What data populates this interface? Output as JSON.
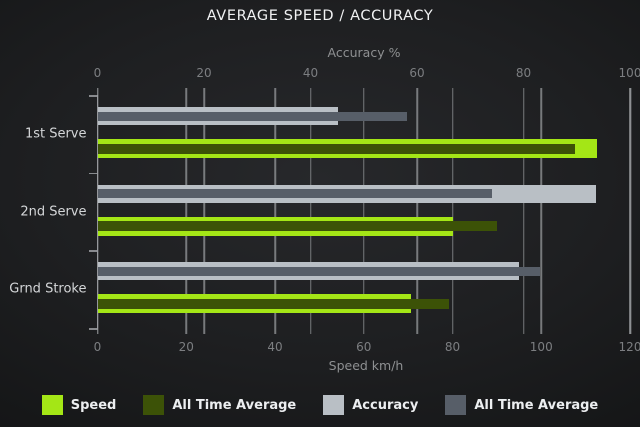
{
  "title": "AVERAGE SPEED / ACCURACY",
  "chart_data": {
    "type": "bar",
    "orientation": "horizontal",
    "grid": true,
    "categories": [
      "1st Serve",
      "2nd Serve",
      "Grnd Stroke"
    ],
    "series": [
      {
        "name": "Speed",
        "axis": "speed",
        "color": "#a4e616",
        "role": "current",
        "values": [
          112.5,
          80,
          70.5
        ]
      },
      {
        "name": "All Time Average",
        "axis": "speed",
        "color": "#3c5207",
        "role": "average",
        "values": [
          107.5,
          90,
          79
        ]
      },
      {
        "name": "Accuracy",
        "axis": "accuracy",
        "color": "#b9bfc5",
        "role": "current",
        "values": [
          45,
          93.5,
          79
        ]
      },
      {
        "name": "All Time Average",
        "axis": "accuracy",
        "color": "#575e68",
        "role": "average",
        "values": [
          58,
          74,
          83
        ]
      }
    ],
    "axes": {
      "top": {
        "label": "Accuracy %",
        "min": 0,
        "max": 100,
        "ticks": [
          0,
          20,
          40,
          60,
          80,
          100
        ]
      },
      "bottom": {
        "label": "Speed km/h",
        "min": 0,
        "max": 120,
        "ticks": [
          0,
          20,
          40,
          60,
          80,
          100,
          120
        ]
      }
    },
    "legend": [
      {
        "label": "Speed",
        "color": "#a4e616"
      },
      {
        "label": "All Time Average",
        "color": "#3c5207"
      },
      {
        "label": "Accuracy",
        "color": "#b9bfc5"
      },
      {
        "label": "All Time Average",
        "color": "#575e68"
      }
    ],
    "legend_position": "bottom"
  },
  "colors": {
    "background": "#1e1f21",
    "title_text": "#f1f2f3",
    "axis_text": "#8e9092",
    "tick_text": "#7c7e81",
    "category_text": "#d4d6d8",
    "gridline": "#95989b",
    "legend_text": "#eceef0"
  }
}
